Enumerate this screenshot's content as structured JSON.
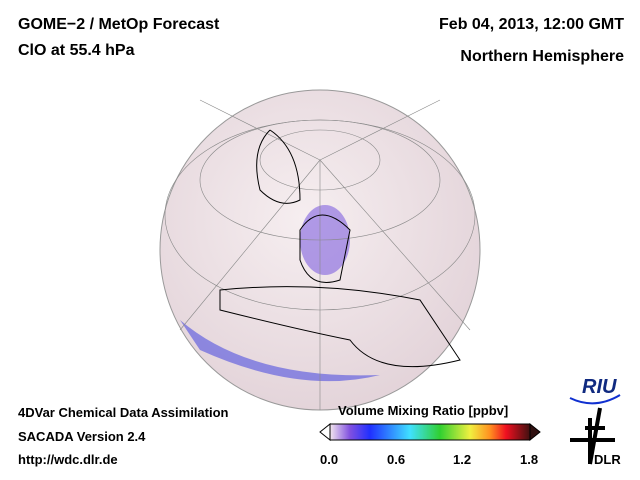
{
  "header": {
    "title": "GOME−2 / MetOp Forecast",
    "species": "ClO at 55.4 hPa",
    "datetime": "Feb 04, 2013, 12:00 GMT",
    "region": "Northern Hemisphere"
  },
  "footer": {
    "line1": "4DVar Chemical Data Assimilation",
    "line2": "SACADA Version 2.4",
    "url": "http://wdc.dlr.de"
  },
  "colorbar": {
    "title": "Volume Mixing Ratio [ppbv]",
    "ticks": [
      "0.0",
      "0.6",
      "1.2",
      "1.8"
    ],
    "min": 0.0,
    "max": 1.8
  },
  "logos": {
    "riu": "RIU",
    "dlr": "DLR"
  }
}
